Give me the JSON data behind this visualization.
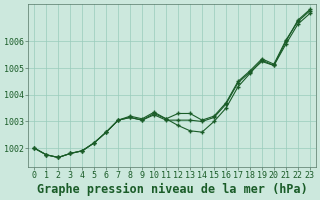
{
  "title": "Graphe pression niveau de la mer (hPa)",
  "background_color": "#cce8dd",
  "plot_bg_color": "#cce8dd",
  "grid_color": "#99ccbb",
  "line_color": "#1a5c28",
  "marker_color": "#1a5c28",
  "xlim": [
    -0.5,
    23.5
  ],
  "ylim": [
    1001.3,
    1007.4
  ],
  "yticks": [
    1002,
    1003,
    1004,
    1005,
    1006
  ],
  "xticks": [
    0,
    1,
    2,
    3,
    4,
    5,
    6,
    7,
    8,
    9,
    10,
    11,
    12,
    13,
    14,
    15,
    16,
    17,
    18,
    19,
    20,
    21,
    22,
    23
  ],
  "series1": [
    1002.0,
    1001.75,
    1001.65,
    1001.8,
    1001.9,
    1002.2,
    1002.6,
    1003.05,
    1003.15,
    1003.05,
    1003.25,
    1003.05,
    1003.05,
    1003.05,
    1003.0,
    1003.15,
    1003.65,
    1004.45,
    1004.85,
    1005.25,
    1005.1,
    1005.9,
    1006.65,
    1007.05
  ],
  "series2": [
    1002.0,
    1001.75,
    1001.65,
    1001.8,
    1001.9,
    1002.2,
    1002.6,
    1003.05,
    1003.15,
    1003.05,
    1003.3,
    1003.1,
    1003.3,
    1003.3,
    1003.05,
    1003.2,
    1003.7,
    1004.5,
    1004.9,
    1005.35,
    1005.15,
    1006.05,
    1006.75,
    1007.15
  ],
  "series3": [
    1002.0,
    1001.75,
    1001.65,
    1001.8,
    1001.9,
    1002.2,
    1002.6,
    1003.05,
    1003.2,
    1003.1,
    1003.35,
    1003.1,
    1002.85,
    1002.65,
    1002.6,
    1003.0,
    1003.5,
    1004.3,
    1004.8,
    1005.3,
    1005.1,
    1006.0,
    1006.8,
    1007.2
  ],
  "title_fontsize": 8.5,
  "tick_fontsize": 6,
  "title_color": "#1a5c28",
  "figsize": [
    3.2,
    2.0
  ],
  "dpi": 100
}
